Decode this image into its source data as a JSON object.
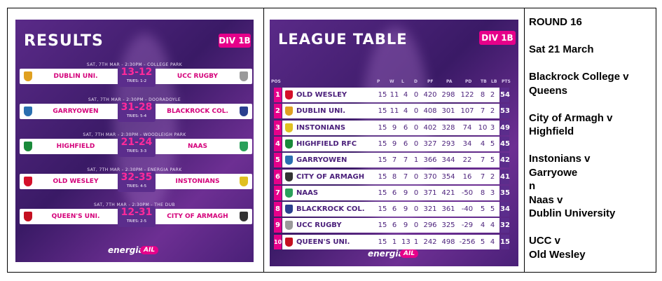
{
  "results": {
    "title": "RESULTS",
    "division": "DIV 1B",
    "matches": [
      {
        "meta": "SAT, 7TH MAR - 2:30PM - COLLEGE PARK",
        "home": "DUBLIN UNI.",
        "score": "13-12",
        "tries": "TRIES: 1-2",
        "away": "UCC RUGBY",
        "home_color": "#e0a020",
        "away_color": "#9a9a9a"
      },
      {
        "meta": "SAT, 7TH MAR - 2:30PM - DOORADOYLE",
        "home": "GARRYOWEN",
        "score": "31-28",
        "tries": "TRIES: 5-4",
        "away": "BLACKROCK COL.",
        "home_color": "#2a6fb0",
        "away_color": "#2a3f8f"
      },
      {
        "meta": "SAT, 7TH MAR - 2:30PM - WOODLEIGH PARK",
        "home": "HIGHFIELD",
        "score": "21-24",
        "tries": "TRIES: 3-3",
        "away": "NAAS",
        "home_color": "#1a8a3a",
        "away_color": "#2aa05a"
      },
      {
        "meta": "SAT, 7TH MAR - 2:30PM - ENERGIA PARK",
        "home": "OLD WESLEY",
        "score": "32-35",
        "tries": "TRIES: 4-5",
        "away": "INSTONIANS",
        "home_color": "#d4102a",
        "away_color": "#e0c020"
      },
      {
        "meta": "SAT, 7TH MAR - 2:30PM - THE DUB",
        "home": "QUEEN'S UNI.",
        "score": "12-31",
        "tries": "TRIES: 2-5",
        "away": "CITY OF ARMAGH",
        "home_color": "#c41020",
        "away_color": "#333333"
      }
    ],
    "sponsor": "energia",
    "sponsor_badge": "AIL"
  },
  "league": {
    "title": "LEAGUE TABLE",
    "division": "DIV 1B",
    "headers": [
      "POS",
      "P",
      "W",
      "L",
      "D",
      "PF",
      "PA",
      "PD",
      "TB",
      "LB",
      "PTS"
    ],
    "rows": [
      {
        "pos": "1",
        "team": "OLD WESLEY",
        "p": "15",
        "w": "11",
        "l": "4",
        "d": "0",
        "pf": "420",
        "pa": "298",
        "pd": "122",
        "tb": "8",
        "lb": "2",
        "pts": "54",
        "crest": "#d4102a"
      },
      {
        "pos": "2",
        "team": "DUBLIN UNI.",
        "p": "15",
        "w": "11",
        "l": "4",
        "d": "0",
        "pf": "408",
        "pa": "301",
        "pd": "107",
        "tb": "7",
        "lb": "2",
        "pts": "53",
        "crest": "#e0a020"
      },
      {
        "pos": "3",
        "team": "INSTONIANS",
        "p": "15",
        "w": "9",
        "l": "6",
        "d": "0",
        "pf": "402",
        "pa": "328",
        "pd": "74",
        "tb": "10",
        "lb": "3",
        "pts": "49",
        "crest": "#e0c020"
      },
      {
        "pos": "4",
        "team": "HIGHFIELD RFC",
        "p": "15",
        "w": "9",
        "l": "6",
        "d": "0",
        "pf": "327",
        "pa": "293",
        "pd": "34",
        "tb": "4",
        "lb": "5",
        "pts": "45",
        "crest": "#1a8a3a"
      },
      {
        "pos": "5",
        "team": "GARRYOWEN",
        "p": "15",
        "w": "7",
        "l": "7",
        "d": "1",
        "pf": "366",
        "pa": "344",
        "pd": "22",
        "tb": "7",
        "lb": "5",
        "pts": "42",
        "crest": "#2a6fb0"
      },
      {
        "pos": "6",
        "team": "CITY OF ARMAGH",
        "p": "15",
        "w": "8",
        "l": "7",
        "d": "0",
        "pf": "370",
        "pa": "354",
        "pd": "16",
        "tb": "7",
        "lb": "2",
        "pts": "41",
        "crest": "#333333"
      },
      {
        "pos": "7",
        "team": "NAAS",
        "p": "15",
        "w": "6",
        "l": "9",
        "d": "0",
        "pf": "371",
        "pa": "421",
        "pd": "-50",
        "tb": "8",
        "lb": "3",
        "pts": "35",
        "crest": "#2aa05a"
      },
      {
        "pos": "8",
        "team": "BLACKROCK COL.",
        "p": "15",
        "w": "6",
        "l": "9",
        "d": "0",
        "pf": "321",
        "pa": "361",
        "pd": "-40",
        "tb": "5",
        "lb": "5",
        "pts": "34",
        "crest": "#2a3f8f"
      },
      {
        "pos": "9",
        "team": "UCC RUGBY",
        "p": "15",
        "w": "6",
        "l": "9",
        "d": "0",
        "pf": "296",
        "pa": "325",
        "pd": "-29",
        "tb": "4",
        "lb": "4",
        "pts": "32",
        "crest": "#9a9a9a"
      },
      {
        "pos": "10",
        "team": "QUEEN'S UNI.",
        "p": "15",
        "w": "1",
        "l": "13",
        "d": "1",
        "pf": "242",
        "pa": "498",
        "pd": "-256",
        "tb": "5",
        "lb": "4",
        "pts": "15",
        "crest": "#c41020"
      }
    ],
    "sponsor": "energia",
    "sponsor_badge": "AIL"
  },
  "fixtures": {
    "heading": "ROUND 16",
    "date": "Sat 21 March",
    "lines": [
      [
        "Blackrock College v",
        "Queens"
      ],
      [
        "City of Armagh v",
        "Highfield"
      ],
      [
        "Instonians v",
        "Garryowe",
        "n",
        "Naas v",
        "Dublin University"
      ],
      [
        "UCC v",
        "Old Wesley"
      ]
    ]
  }
}
